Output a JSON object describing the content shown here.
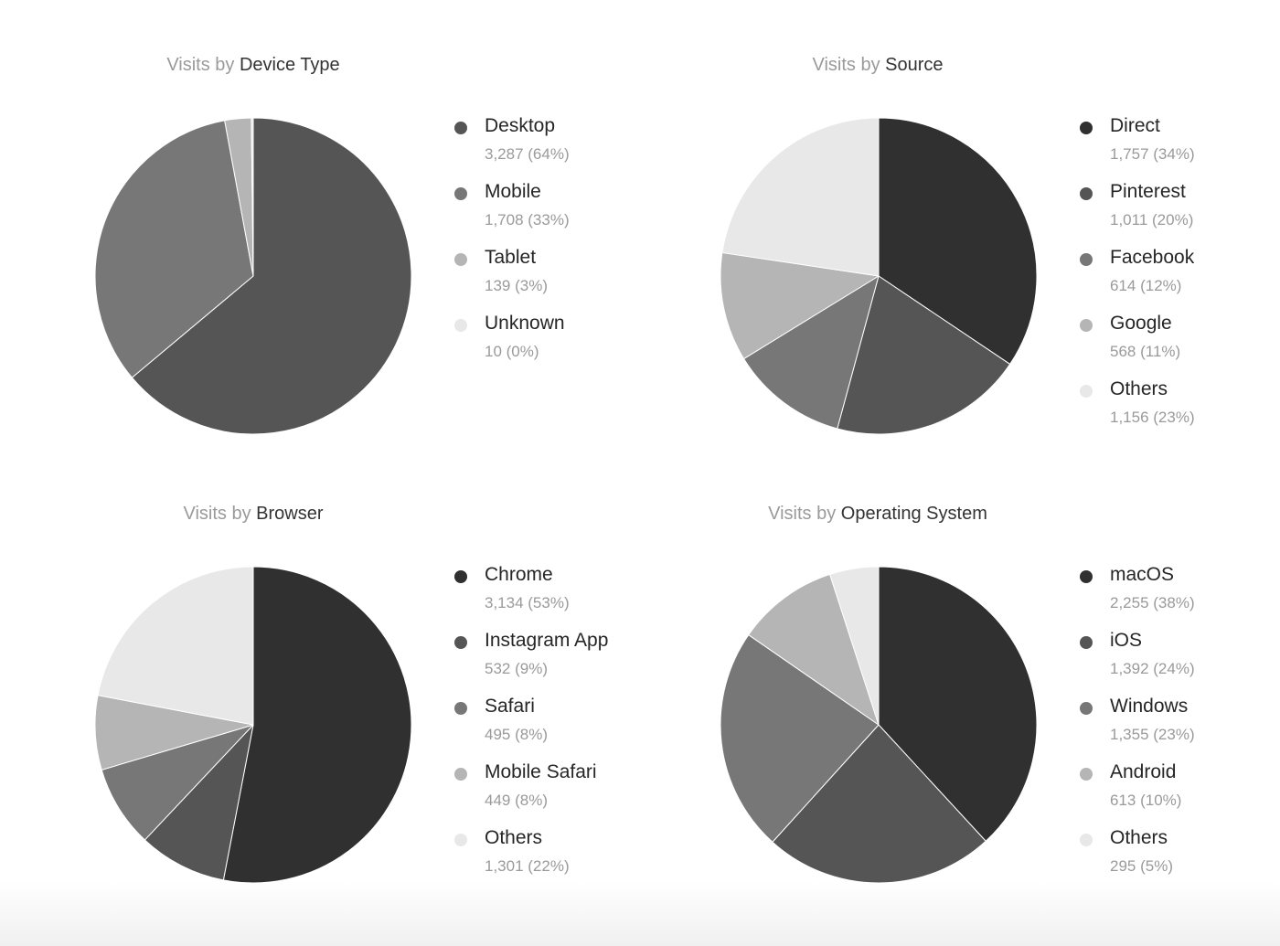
{
  "chart_data": [
    {
      "type": "pie",
      "title_prefix": "Visits by",
      "title_main": "Device Type",
      "slices": [
        {
          "label": "Desktop",
          "value": 3287,
          "display": "3,287 (64%)",
          "color": "#555555"
        },
        {
          "label": "Mobile",
          "value": 1708,
          "display": "1,708 (33%)",
          "color": "#777777"
        },
        {
          "label": "Tablet",
          "value": 139,
          "display": "139 (3%)",
          "color": "#b5b5b5"
        },
        {
          "label": "Unknown",
          "value": 10,
          "display": "10 (0%)",
          "color": "#e8e8e8"
        }
      ]
    },
    {
      "type": "pie",
      "title_prefix": "Visits by",
      "title_main": "Source",
      "slices": [
        {
          "label": "Direct",
          "value": 1757,
          "display": "1,757 (34%)",
          "color": "#303030"
        },
        {
          "label": "Pinterest",
          "value": 1011,
          "display": "1,011 (20%)",
          "color": "#555555"
        },
        {
          "label": "Facebook",
          "value": 614,
          "display": "614 (12%)",
          "color": "#777777"
        },
        {
          "label": "Google",
          "value": 568,
          "display": "568 (11%)",
          "color": "#b5b5b5"
        },
        {
          "label": "Others",
          "value": 1156,
          "display": "1,156 (23%)",
          "color": "#e8e8e8"
        }
      ]
    },
    {
      "type": "pie",
      "title_prefix": "Visits by",
      "title_main": "Browser",
      "slices": [
        {
          "label": "Chrome",
          "value": 3134,
          "display": "3,134 (53%)",
          "color": "#303030"
        },
        {
          "label": "Instagram App",
          "value": 532,
          "display": "532 (9%)",
          "color": "#555555"
        },
        {
          "label": "Safari",
          "value": 495,
          "display": "495 (8%)",
          "color": "#777777"
        },
        {
          "label": "Mobile Safari",
          "value": 449,
          "display": "449 (8%)",
          "color": "#b5b5b5"
        },
        {
          "label": "Others",
          "value": 1301,
          "display": "1,301 (22%)",
          "color": "#e8e8e8"
        }
      ]
    },
    {
      "type": "pie",
      "title_prefix": "Visits by",
      "title_main": "Operating System",
      "slices": [
        {
          "label": "macOS",
          "value": 2255,
          "display": "2,255 (38%)",
          "color": "#303030"
        },
        {
          "label": "iOS",
          "value": 1392,
          "display": "1,392 (24%)",
          "color": "#555555"
        },
        {
          "label": "Windows",
          "value": 1355,
          "display": "1,355 (23%)",
          "color": "#777777"
        },
        {
          "label": "Android",
          "value": 613,
          "display": "613 (10%)",
          "color": "#b5b5b5"
        },
        {
          "label": "Others",
          "value": 295,
          "display": "295 (5%)",
          "color": "#e8e8e8"
        }
      ]
    }
  ]
}
